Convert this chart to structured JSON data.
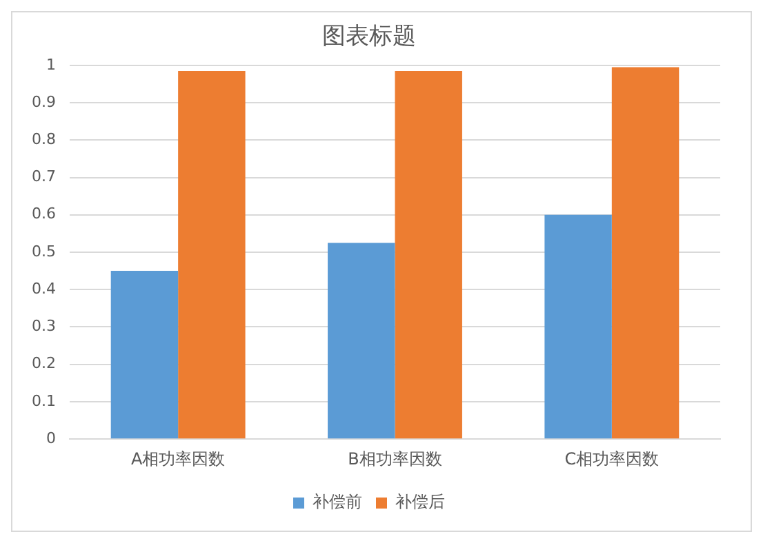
{
  "chart_data": {
    "type": "bar",
    "title": "图表标题",
    "categories": [
      "A相功率因数",
      "B相功率因数",
      "C相功率因数"
    ],
    "series": [
      {
        "name": "补偿前",
        "color": "#5b9bd5",
        "values": [
          0.45,
          0.525,
          0.6
        ]
      },
      {
        "name": "补偿后",
        "color": "#ed7d31",
        "values": [
          0.985,
          0.985,
          0.995
        ]
      }
    ],
    "ylim": [
      0,
      1
    ],
    "yticks": [
      0,
      0.1,
      0.2,
      0.3,
      0.4,
      0.5,
      0.6,
      0.7,
      0.8,
      0.9,
      1
    ],
    "grid": "y",
    "legend": "bottom"
  }
}
